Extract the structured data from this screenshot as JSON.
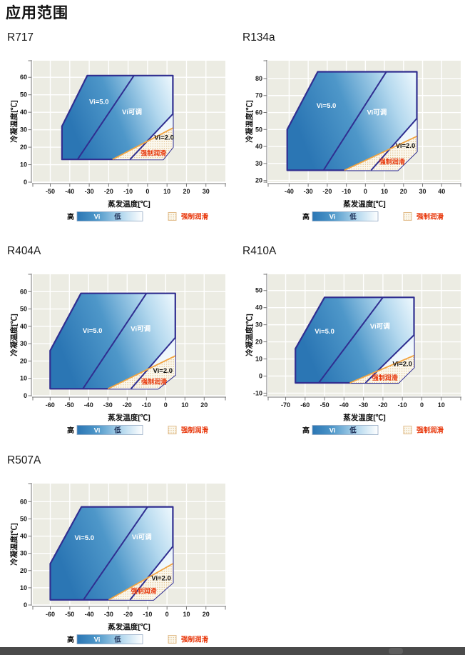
{
  "page": {
    "title": "应用范围"
  },
  "legend": {
    "high": "高",
    "vi": "Vi",
    "low": "低",
    "forced": "强制润滑"
  },
  "colors": {
    "border": "#302E90",
    "gradient": [
      "#2B76B4",
      "#4E97C9",
      "#B3D8EE",
      "#F0F9FE"
    ],
    "vi2_fill_top": "#D9ECF8",
    "vi2_fill_bottom": "#FFFFFF",
    "orange_line": "#F2A440",
    "forced_text": "#E8380C",
    "plot_bg": "#ECECE3",
    "grid": "#FFFFFF",
    "axis": "#777777",
    "dot": "#DDB97F",
    "dot_bg": "#FBF8EE",
    "bar_border": "#93A9C4",
    "swatch_border": "#E2BD8C",
    "bottom_bar": "#4A4A4A"
  },
  "chart_data": [
    {
      "id": "r717",
      "title": "R717",
      "type": "area",
      "xlabel": "蒸发温度[℃]",
      "ylabel": "冷凝温度[℃]",
      "xlim": [
        -59,
        40
      ],
      "ylim": [
        0,
        69.5
      ],
      "xticks": [
        -50,
        -40,
        -30,
        -20,
        -10,
        0,
        10,
        20,
        30
      ],
      "yticks": [
        0,
        10,
        20,
        30,
        40,
        50,
        60
      ],
      "regions": {
        "main_polygon": [
          [
            -44,
            13
          ],
          [
            -44,
            32
          ],
          [
            -31,
            61
          ],
          [
            13,
            61
          ],
          [
            13,
            20
          ],
          [
            8,
            13
          ]
        ],
        "divider_vi5_viadj": [
          [
            -36,
            13
          ],
          [
            -7,
            61
          ]
        ],
        "divider_viadj_vi2": [
          [
            -9,
            13
          ],
          [
            13,
            39
          ]
        ],
        "vi2_polygon": [
          [
            -9,
            13
          ],
          [
            13,
            39
          ],
          [
            13,
            20
          ],
          [
            8,
            13
          ]
        ],
        "forced_lubrication_line": [
          [
            -18,
            13
          ],
          [
            13,
            31
          ]
        ],
        "forced_polygon": [
          [
            -18,
            13
          ],
          [
            13,
            31
          ],
          [
            13,
            20
          ],
          [
            8,
            13
          ]
        ]
      },
      "labels": [
        {
          "text": "Vi=5.0",
          "x": -25,
          "y": 46,
          "style": "light"
        },
        {
          "text": "Vi可调",
          "x": -8,
          "y": 40,
          "style": "light"
        },
        {
          "text": "Vi=2.0",
          "x": 8.5,
          "y": 25.5,
          "style": "dark"
        },
        {
          "text": "强制润滑",
          "x": 3,
          "y": 16.5,
          "style": "forced"
        }
      ]
    },
    {
      "id": "r134a",
      "title": "R134a",
      "type": "area",
      "xlabel": "蒸发温度[℃]",
      "ylabel": "冷凝温度[℃]",
      "xlim": [
        -51,
        50
      ],
      "ylim": [
        19,
        90.5
      ],
      "xticks": [
        -40,
        -30,
        -20,
        -10,
        0,
        10,
        20,
        30,
        40
      ],
      "yticks": [
        20,
        30,
        40,
        50,
        60,
        70,
        80
      ],
      "regions": {
        "main_polygon": [
          [
            -41,
            26
          ],
          [
            -41,
            50
          ],
          [
            -25,
            84
          ],
          [
            27,
            84
          ],
          [
            27,
            37
          ],
          [
            17,
            26
          ]
        ],
        "divider_vi5_viadj": [
          [
            -22,
            26
          ],
          [
            11,
            84
          ]
        ],
        "divider_viadj_vi2": [
          [
            3,
            26
          ],
          [
            27,
            56.5
          ]
        ],
        "vi2_polygon": [
          [
            3,
            26
          ],
          [
            27,
            56.5
          ],
          [
            27,
            37
          ],
          [
            17,
            26
          ]
        ],
        "forced_lubrication_line": [
          [
            -11,
            26
          ],
          [
            27,
            46
          ]
        ],
        "forced_polygon": [
          [
            -11,
            26
          ],
          [
            27,
            46
          ],
          [
            27,
            37
          ],
          [
            17,
            26
          ]
        ]
      },
      "labels": [
        {
          "text": "Vi=5.0",
          "x": -20.5,
          "y": 64,
          "style": "light"
        },
        {
          "text": "Vi可调",
          "x": 6,
          "y": 60,
          "style": "light"
        },
        {
          "text": "Vi=2.0",
          "x": 21,
          "y": 40.5,
          "style": "dark"
        },
        {
          "text": "强制润滑",
          "x": 14,
          "y": 31,
          "style": "forced"
        }
      ]
    },
    {
      "id": "r404a",
      "title": "R404A",
      "type": "area",
      "xlabel": "蒸发温度[℃]",
      "ylabel": "冷凝温度[℃]",
      "xlim": [
        -69,
        31
      ],
      "ylim": [
        0,
        70
      ],
      "xticks": [
        -60,
        -50,
        -40,
        -30,
        -20,
        -10,
        0,
        10,
        20
      ],
      "yticks": [
        0,
        10,
        20,
        30,
        40,
        50,
        60
      ],
      "regions": {
        "main_polygon": [
          [
            -60,
            4
          ],
          [
            -60,
            26
          ],
          [
            -44,
            59
          ],
          [
            5,
            59
          ],
          [
            5,
            12
          ],
          [
            -4,
            4
          ]
        ],
        "divider_vi5_viadj": [
          [
            -43,
            4
          ],
          [
            -10,
            59
          ]
        ],
        "divider_viadj_vi2": [
          [
            -18,
            4
          ],
          [
            5,
            33.5
          ]
        ],
        "vi2_polygon": [
          [
            -18,
            4
          ],
          [
            5,
            33.5
          ],
          [
            5,
            12
          ],
          [
            -4,
            4
          ]
        ],
        "forced_lubrication_line": [
          [
            -30,
            4
          ],
          [
            5,
            23
          ]
        ],
        "forced_polygon": [
          [
            -30,
            4
          ],
          [
            5,
            23
          ],
          [
            5,
            12
          ],
          [
            -4,
            4
          ]
        ]
      },
      "labels": [
        {
          "text": "Vi=5.0",
          "x": -38,
          "y": 37.5,
          "style": "light"
        },
        {
          "text": "Vi可调",
          "x": -13,
          "y": 38.5,
          "style": "light"
        },
        {
          "text": "Vi=2.0",
          "x": -1.5,
          "y": 14.5,
          "style": "dark"
        },
        {
          "text": "强制润滑",
          "x": -6,
          "y": 8,
          "style": "forced"
        }
      ]
    },
    {
      "id": "r410a",
      "title": "R410A",
      "type": "area",
      "xlabel": "蒸发温度[℃]",
      "ylabel": "冷凝温度[℃]",
      "xlim": [
        -79,
        20
      ],
      "ylim": [
        -11.5,
        59.5
      ],
      "xticks": [
        -70,
        -60,
        -50,
        -40,
        -30,
        -20,
        -10,
        0,
        10
      ],
      "yticks": [
        -10,
        0,
        10,
        20,
        30,
        40,
        50
      ],
      "regions": {
        "main_polygon": [
          [
            -65,
            -4
          ],
          [
            -65,
            16
          ],
          [
            -50,
            46
          ],
          [
            -4,
            46
          ],
          [
            -4,
            5
          ],
          [
            -12,
            -4
          ]
        ],
        "divider_vi5_viadj": [
          [
            -53,
            -4
          ],
          [
            -20,
            46
          ]
        ],
        "divider_viadj_vi2": [
          [
            -29,
            -4
          ],
          [
            -4,
            24
          ]
        ],
        "vi2_polygon": [
          [
            -29,
            -4
          ],
          [
            -4,
            24
          ],
          [
            -4,
            5
          ],
          [
            -12,
            -4
          ]
        ],
        "forced_lubrication_line": [
          [
            -37,
            -4
          ],
          [
            -4,
            12
          ]
        ],
        "forced_polygon": [
          [
            -37,
            -4
          ],
          [
            -4,
            12
          ],
          [
            -4,
            5
          ],
          [
            -12,
            -4
          ]
        ]
      },
      "labels": [
        {
          "text": "Vi=5.0",
          "x": -50,
          "y": 26,
          "style": "light"
        },
        {
          "text": "Vi可调",
          "x": -21.5,
          "y": 29,
          "style": "light"
        },
        {
          "text": "Vi=2.0",
          "x": -10,
          "y": 7,
          "style": "dark"
        },
        {
          "text": "强制润滑",
          "x": -19,
          "y": -1,
          "style": "forced"
        }
      ]
    },
    {
      "id": "r507a",
      "title": "R507A",
      "type": "area",
      "xlabel": "蒸发温度[℃]",
      "ylabel": "冷凝温度[℃]",
      "xlim": [
        -69,
        30
      ],
      "ylim": [
        0,
        70.5
      ],
      "xticks": [
        -60,
        -50,
        -40,
        -30,
        -20,
        -10,
        0,
        10,
        20
      ],
      "yticks": [
        0,
        10,
        20,
        30,
        40,
        50,
        60
      ],
      "regions": {
        "main_polygon": [
          [
            -60,
            3
          ],
          [
            -60,
            24
          ],
          [
            -44,
            57
          ],
          [
            3,
            57
          ],
          [
            3,
            13
          ],
          [
            -7,
            3
          ]
        ],
        "divider_vi5_viadj": [
          [
            -43,
            3
          ],
          [
            -10,
            57
          ]
        ],
        "divider_viadj_vi2": [
          [
            -19,
            3
          ],
          [
            3,
            34
          ]
        ],
        "vi2_polygon": [
          [
            -19,
            3
          ],
          [
            3,
            34
          ],
          [
            3,
            13
          ],
          [
            -7,
            3
          ]
        ],
        "forced_lubrication_line": [
          [
            -30,
            3
          ],
          [
            3,
            24
          ]
        ],
        "forced_polygon": [
          [
            -30,
            3
          ],
          [
            3,
            24
          ],
          [
            3,
            13
          ],
          [
            -7,
            3
          ]
        ]
      },
      "labels": [
        {
          "text": "Vi=5.0",
          "x": -42.5,
          "y": 39,
          "style": "light"
        },
        {
          "text": "Vi可调",
          "x": -13,
          "y": 39.5,
          "style": "light"
        },
        {
          "text": "Vi=2.0",
          "x": -3,
          "y": 15.5,
          "style": "dark"
        },
        {
          "text": "强制润滑",
          "x": -12,
          "y": 8,
          "style": "forced"
        }
      ]
    }
  ]
}
